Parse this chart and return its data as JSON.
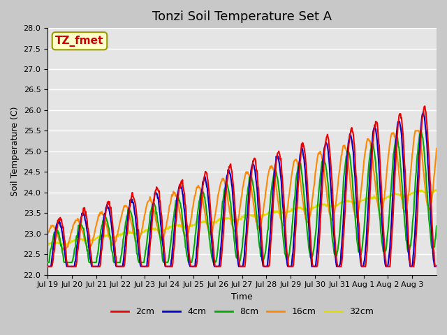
{
  "title": "Tonzi Soil Temperature Set A",
  "xlabel": "Time",
  "ylabel": "Soil Temperature (C)",
  "ylim": [
    22.0,
    28.0
  ],
  "yticks": [
    22.0,
    22.5,
    23.0,
    23.5,
    24.0,
    24.5,
    25.0,
    25.5,
    26.0,
    26.5,
    27.0,
    27.5,
    28.0
  ],
  "xtick_labels": [
    "Jul 19",
    "Jul 20",
    "Jul 21",
    "Jul 22",
    "Jul 23",
    "Jul 24",
    "Jul 25",
    "Jul 26",
    "Jul 27",
    "Jul 28",
    "Jul 29",
    "Jul 30",
    "Jul 31",
    "Aug 1",
    "Aug 2",
    "Aug 3"
  ],
  "annotation_text": "TZ_fmet",
  "annotation_color": "#cc0000",
  "annotation_bg": "#ffffcc",
  "annotation_border": "#999900",
  "series_colors": [
    "#ee0000",
    "#0000cc",
    "#00aa00",
    "#ff8800",
    "#dddd00"
  ],
  "series_labels": [
    "2cm",
    "4cm",
    "8cm",
    "16cm",
    "32cm"
  ],
  "series_linewidth": 1.5,
  "bg_color": "#e5e5e5",
  "grid_color": "#ffffff",
  "title_fontsize": 13,
  "label_fontsize": 9,
  "tick_fontsize": 8,
  "legend_fontsize": 9,
  "n_days": 16,
  "pts_per_day": 48
}
